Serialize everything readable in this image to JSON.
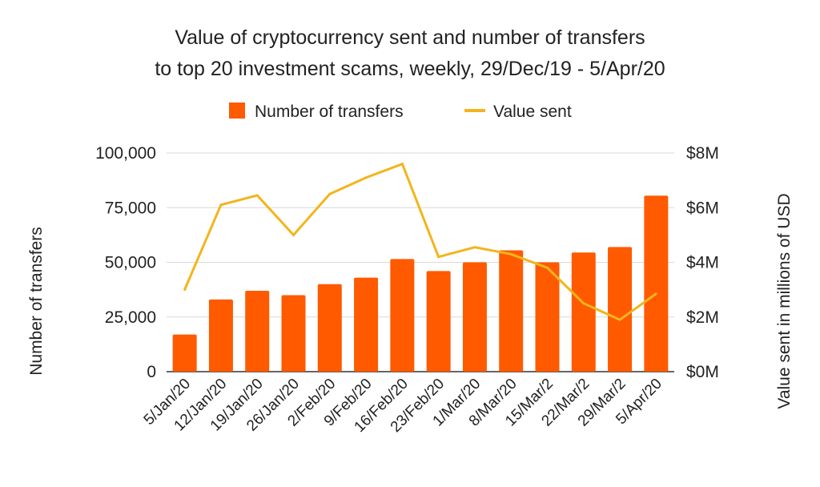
{
  "chart_data": {
    "type": "bar+line",
    "title": [
      "Value of cryptocurrency sent and number of transfers",
      "to top 20 investment scams, weekly, 29/Dec/19 - 5/Apr/20"
    ],
    "categories": [
      "5/Jan/20",
      "12/Jan/20",
      "19/Jan/20",
      "26/Jan/20",
      "2/Feb/20",
      "9/Feb/20",
      "16/Feb/20",
      "23/Feb/20",
      "1/Mar/20",
      "8/Mar/20",
      "15/Mar/2",
      "22/Mar/2",
      "29/Mar/2",
      "5/Apr/20"
    ],
    "series": [
      {
        "name": "Number of transfers",
        "type": "bar",
        "axis": "left",
        "color": "#ff5a00",
        "values": [
          17000,
          33000,
          37000,
          35000,
          40000,
          43000,
          51500,
          46000,
          50000,
          55500,
          50000,
          54500,
          57000,
          80500
        ]
      },
      {
        "name": "Value sent",
        "type": "line",
        "axis": "right",
        "color": "#f2b51d",
        "values": [
          3.0,
          6.1,
          6.45,
          5.0,
          6.5,
          7.1,
          7.6,
          4.2,
          4.55,
          4.3,
          3.8,
          2.5,
          1.9,
          2.85
        ]
      }
    ],
    "y_left": {
      "label": "Number of transfers",
      "min": 0,
      "max": 100000,
      "ticks": [
        0,
        25000,
        50000,
        75000,
        100000
      ],
      "tick_labels": [
        "0",
        "25,000",
        "50,000",
        "75,000",
        "100,000"
      ]
    },
    "y_right": {
      "label": "Value sent in millions of USD",
      "min": 0,
      "max": 8,
      "ticks": [
        0,
        2,
        4,
        6,
        8
      ],
      "tick_labels": [
        "$0M",
        "$2M",
        "$4M",
        "$6M",
        "$8M"
      ]
    },
    "grid": true,
    "legend_position": "top-center",
    "grid_color": "#d9d9d9"
  }
}
